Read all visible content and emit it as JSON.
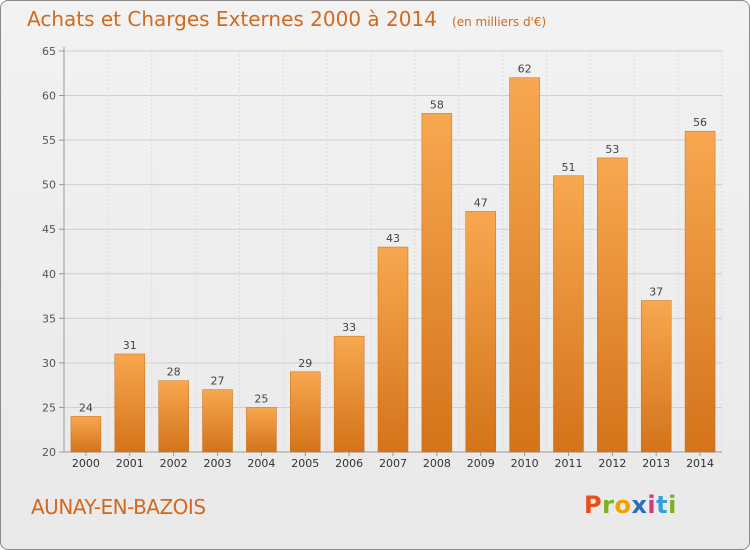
{
  "title": "Achats et Charges Externes 2000 à 2014",
  "unit_note": "(en milliers d'€)",
  "place": "AUNAY-EN-BAZOIS",
  "brand": {
    "letters": [
      "P",
      "r",
      "o",
      "x",
      "i",
      "t",
      "i"
    ],
    "colors": [
      "#e8501a",
      "#7cb21f",
      "#f2a000",
      "#2a6fb5",
      "#d23a7a",
      "#36a0d8",
      "#7cb21f"
    ]
  },
  "colors": {
    "bar_light": "#f7a84f",
    "bar_dark": "#d4731a",
    "accent": "#d2691e"
  },
  "chart_data": {
    "type": "bar",
    "categories": [
      "2000",
      "2001",
      "2002",
      "2003",
      "2004",
      "2005",
      "2006",
      "2007",
      "2008",
      "2009",
      "2010",
      "2011",
      "2012",
      "2013",
      "2014"
    ],
    "values": [
      24,
      31,
      28,
      27,
      25,
      29,
      33,
      43,
      58,
      47,
      62,
      51,
      53,
      37,
      56
    ],
    "title": "Achats et Charges Externes 2000 à 2014",
    "xlabel": "",
    "ylabel": "",
    "ylim": [
      20,
      65
    ],
    "yticks": [
      20,
      25,
      30,
      35,
      40,
      45,
      50,
      55,
      60,
      65
    ],
    "grid": true,
    "data_labels": true
  }
}
